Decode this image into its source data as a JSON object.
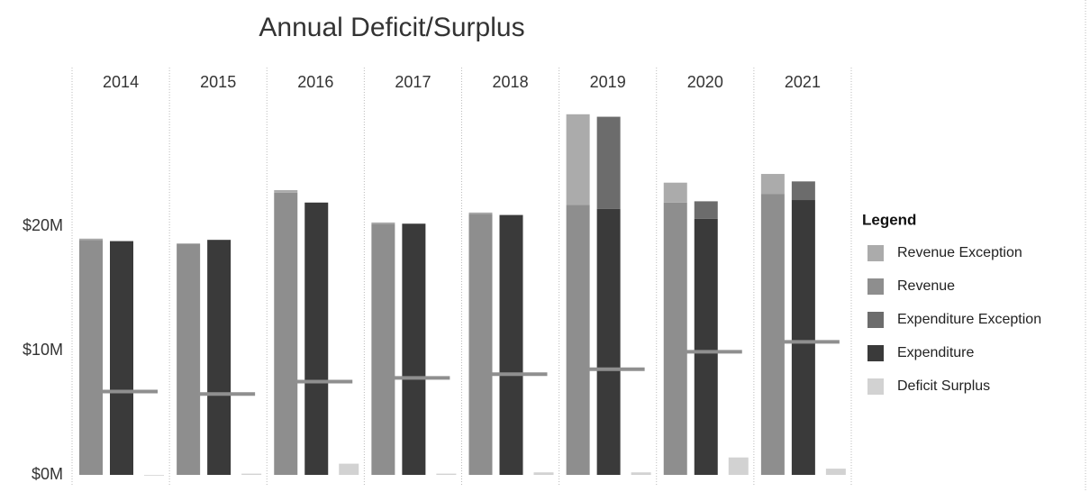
{
  "chart_data": {
    "type": "bar",
    "title": "Annual Deficit/Surplus",
    "legend_title": "Legend",
    "legend": "right",
    "categories": [
      "2014",
      "2015",
      "2016",
      "2017",
      "2018",
      "2019",
      "2020",
      "2021"
    ],
    "series": [
      {
        "name": "Revenue Exception",
        "color": "#ababab",
        "values": [
          0.1,
          0,
          0.2,
          0.1,
          0.1,
          7.3,
          1.6,
          1.6
        ]
      },
      {
        "name": "Revenue",
        "color": "#8e8e8e",
        "values": [
          18.9,
          18.6,
          22.7,
          20.2,
          21.0,
          21.7,
          21.9,
          22.6
        ]
      },
      {
        "name": "Expenditure Exception",
        "color": "#6c6c6c",
        "values": [
          0,
          0,
          0,
          0,
          0,
          7.4,
          1.4,
          1.5
        ]
      },
      {
        "name": "Expenditure",
        "color": "#3a3a3a",
        "values": [
          18.8,
          18.9,
          21.9,
          20.2,
          20.9,
          21.4,
          20.6,
          22.1
        ]
      },
      {
        "name": "Deficit Surplus",
        "color": "#d2d2d2",
        "values": [
          0,
          0.1,
          0.9,
          0.1,
          0.2,
          0.2,
          1.4,
          0.5
        ]
      }
    ],
    "marker_color": "#8f8f8f",
    "marker_values": [
      6.7,
      6.5,
      7.5,
      7.8,
      8.1,
      8.5,
      9.9,
      10.7
    ],
    "ylim": [
      0,
      30
    ],
    "yticks": [
      {
        "value": 0,
        "label": "$0M"
      },
      {
        "value": 10,
        "label": "$10M"
      },
      {
        "value": 20,
        "label": "$20M"
      }
    ],
    "grid": false
  }
}
